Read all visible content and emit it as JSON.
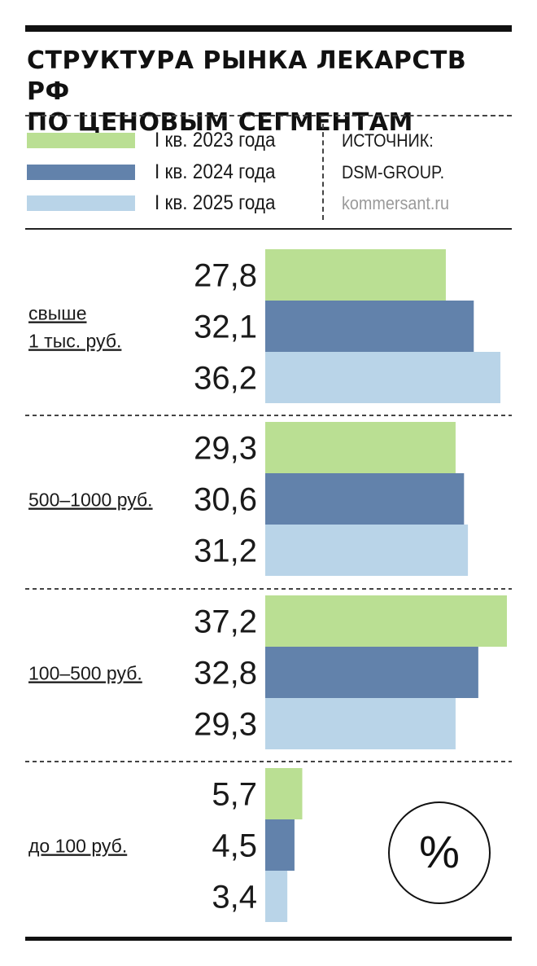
{
  "title": [
    "СТРУКТУРА РЫНКА ЛЕКАРСТВ РФ",
    "ПО ЦЕНОВЫМ СЕГМЕНТАМ"
  ],
  "legend": [
    {
      "label": "I кв. 2023 года",
      "color": "#badf93"
    },
    {
      "label": "I кв. 2024 года",
      "color": "#6282ab"
    },
    {
      "label": "I кв. 2025 года",
      "color": "#b9d4e8"
    }
  ],
  "source": {
    "label": "ИСТОЧНИК:",
    "name": "DSM-GROUP.",
    "site": "kommersant.ru"
  },
  "unit": "%",
  "chart_data": {
    "type": "bar",
    "orientation": "horizontal",
    "categories": [
      [
        "свыше",
        "1 тыс. руб."
      ],
      [
        "500–1000 руб."
      ],
      [
        "100–500 руб."
      ],
      [
        "до 100 руб."
      ]
    ],
    "series": [
      {
        "name": "I кв. 2023 года",
        "values": [
          "27,8",
          "29,3",
          "37,2",
          "5,7"
        ]
      },
      {
        "name": "I кв. 2024 года",
        "values": [
          "32,1",
          "30,6",
          "32,8",
          "4,5"
        ]
      },
      {
        "name": "I кв. 2025 года",
        "values": [
          "36,2",
          "31,2",
          "29,3",
          "3,4"
        ]
      }
    ],
    "xlim": [
      0,
      37.2
    ],
    "grid": false,
    "legend": "top-left",
    "data_labels": "left of bars"
  }
}
